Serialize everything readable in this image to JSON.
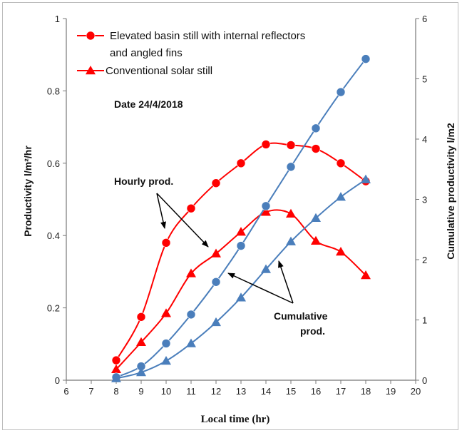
{
  "chart_data": {
    "type": "line",
    "xlabel": "Local time (hr)",
    "ylabel_left": "Productivity l/m²/hr",
    "ylabel_right": "Cumulative productivity l/m2",
    "xlim": [
      6,
      20
    ],
    "ylim_left": [
      0,
      1
    ],
    "ylim_right": [
      0,
      6
    ],
    "x_ticks": [
      "6",
      "7",
      "8",
      "9",
      "10",
      "11",
      "12",
      "13",
      "14",
      "15",
      "16",
      "17",
      "18",
      "19",
      "20"
    ],
    "y_left_ticks": [
      "0",
      "0.2",
      "0.4",
      "0.6",
      "0.8",
      "1"
    ],
    "y_right_ticks": [
      "0",
      "1",
      "2",
      "3",
      "4",
      "5",
      "6"
    ],
    "legend": {
      "placement": "top-left",
      "entries": [
        {
          "line1": "Elevated basin still with internal reflectors",
          "line2": "and angled fins",
          "marker": "circle",
          "color": "#ff0000"
        },
        {
          "line1": "Conventional solar still",
          "line2": "",
          "marker": "triangle",
          "color": "#ff0000"
        }
      ]
    },
    "annotations": {
      "date": "Date 24/4/2018",
      "hourly": "Hourly prod.",
      "cumulative_line1": "Cumulative",
      "cumulative_line2": "prod."
    },
    "series": [
      {
        "name": "Elevated basin still with internal reflectors and angled fins",
        "kind": "hourly",
        "axis": "left",
        "color": "#ff0000",
        "marker": "circle",
        "x": [
          8,
          9,
          10,
          11,
          12,
          13,
          14,
          15,
          16,
          17,
          18
        ],
        "y": [
          0.055,
          0.175,
          0.38,
          0.475,
          0.545,
          0.6,
          0.652,
          0.65,
          0.64,
          0.6,
          0.55
        ]
      },
      {
        "name": "Conventional solar still",
        "kind": "hourly",
        "axis": "left",
        "color": "#ff0000",
        "marker": "triangle",
        "x": [
          8,
          9,
          10,
          11,
          12,
          13,
          14,
          15,
          16,
          17,
          18
        ],
        "y": [
          0.03,
          0.105,
          0.185,
          0.295,
          0.35,
          0.41,
          0.465,
          0.46,
          0.385,
          0.355,
          0.29
        ]
      },
      {
        "kind": "cumulative",
        "axis": "right",
        "color": "#4a7ebb",
        "marker": "circle",
        "x": [
          8,
          9,
          10,
          11,
          12,
          13,
          14,
          15,
          16,
          17,
          18
        ],
        "y": [
          0.05,
          0.23,
          0.61,
          1.09,
          1.63,
          2.23,
          2.89,
          3.54,
          4.18,
          4.78,
          5.33
        ]
      },
      {
        "kind": "cumulative",
        "axis": "right",
        "color": "#4a7ebb",
        "marker": "triangle",
        "x": [
          8,
          9,
          10,
          11,
          12,
          13,
          14,
          15,
          16,
          17,
          18
        ],
        "y": [
          0.03,
          0.13,
          0.32,
          0.61,
          0.96,
          1.37,
          1.84,
          2.3,
          2.69,
          3.04,
          3.33
        ]
      }
    ]
  }
}
